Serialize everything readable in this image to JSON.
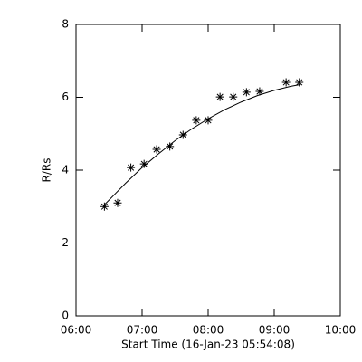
{
  "chart_data": {
    "type": "scatter",
    "x_label": "Start Time (16-Jan-23 05:54:08)",
    "y_label": "R/Rs",
    "x": [
      6.43,
      6.63,
      6.83,
      7.03,
      7.22,
      7.42,
      7.62,
      7.82,
      8.0,
      8.18,
      8.38,
      8.58,
      8.78,
      9.18,
      9.38
    ],
    "values": [
      3.0,
      3.1,
      4.07,
      4.17,
      4.57,
      4.65,
      4.97,
      5.37,
      5.37,
      6.01,
      6.01,
      6.14,
      6.16,
      6.41,
      6.41
    ],
    "fit": {
      "x": [
        6.43,
        6.75,
        7.0,
        7.25,
        7.5,
        7.75,
        8.0,
        8.25,
        8.5,
        8.75,
        9.0,
        9.25,
        9.4
      ],
      "values": [
        3.05,
        3.64,
        4.07,
        4.45,
        4.81,
        5.13,
        5.41,
        5.66,
        5.87,
        6.05,
        6.19,
        6.3,
        6.35
      ]
    },
    "color": "#000000",
    "xlim": [
      6,
      10
    ],
    "xticks": [
      {
        "value": 6,
        "label": "06:00"
      },
      {
        "value": 7,
        "label": "07:00"
      },
      {
        "value": 8,
        "label": "08:00"
      },
      {
        "value": 9,
        "label": "09:00"
      },
      {
        "value": 10,
        "label": "10:00"
      }
    ],
    "ylim": [
      0,
      8
    ],
    "yticks": [
      0,
      2,
      4,
      6,
      8
    ]
  }
}
